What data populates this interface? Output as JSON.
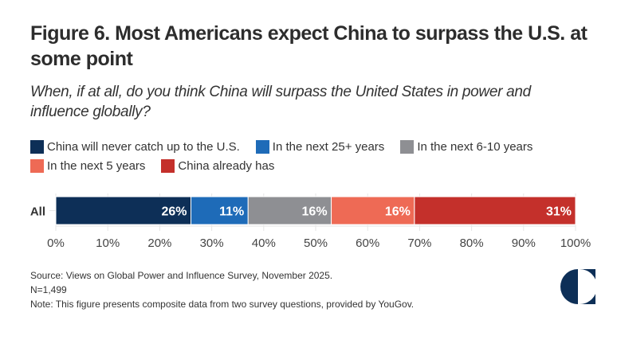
{
  "header": {
    "title": "Figure 6. Most Americans expect China to surpass the U.S. at some point",
    "subtitle": "When, if at all, do you think China will surpass the United States in power and influence globally?"
  },
  "legend": {
    "rows": [
      [
        0,
        1,
        2
      ],
      [
        3,
        4
      ]
    ]
  },
  "chart_data": {
    "type": "bar",
    "orientation": "horizontal",
    "stacked": true,
    "title": "Figure 6. Most Americans expect China to surpass the U.S. at some point",
    "subtitle": "When, if at all, do you think China will surpass the United States in power and influence globally?",
    "categories": [
      "All"
    ],
    "series": [
      {
        "name": "China will never catch up to the U.S.",
        "values": [
          26
        ],
        "label": "26%",
        "color": "#0d2f57"
      },
      {
        "name": "In the next 25+ years",
        "values": [
          11
        ],
        "label": "11%",
        "color": "#1e6bb8"
      },
      {
        "name": "In the next 6-10 years",
        "values": [
          16
        ],
        "label": "16%",
        "color": "#8e8f93"
      },
      {
        "name": "In the next 5 years",
        "values": [
          16
        ],
        "label": "16%",
        "color": "#ee6a55"
      },
      {
        "name": "China already has",
        "values": [
          31
        ],
        "label": "31%",
        "color": "#c4302b"
      }
    ],
    "xlim": [
      0,
      100
    ],
    "xticks": [
      "0%",
      "10%",
      "20%",
      "30%",
      "40%",
      "50%",
      "60%",
      "70%",
      "80%",
      "90%",
      "100%"
    ],
    "xlabel": "",
    "ylabel": "",
    "grid": true,
    "legend_position": "top"
  },
  "footer": {
    "source": "Source: Views on Global Power and Influence Survey, November 2025.",
    "n": "N=1,499",
    "note": "Note: This figure presents composite data from two survey questions, provided by YouGov."
  },
  "logo": {
    "name": "half-circle-logo",
    "color": "#0d2f57"
  }
}
